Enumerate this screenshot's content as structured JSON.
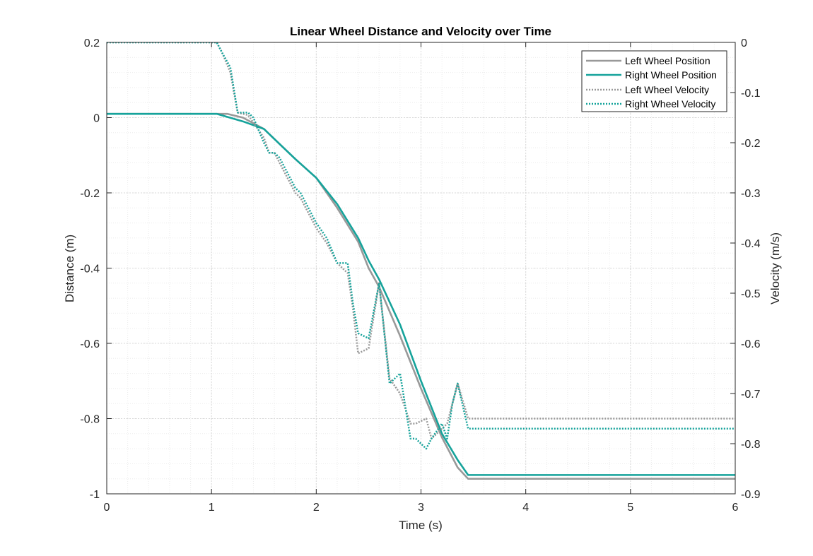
{
  "chart_data": {
    "type": "line",
    "title": "Linear Wheel Distance and Velocity over Time",
    "xlabel": "Time (s)",
    "ylabel_left": "Distance (m)",
    "ylabel_right": "Velocity (m/s)",
    "xlim": [
      0,
      6
    ],
    "ylim_left": [
      -1,
      0.2
    ],
    "ylim_right": [
      -0.9,
      0
    ],
    "x_ticks": [
      "0",
      "1",
      "2",
      "3",
      "4",
      "5",
      "6"
    ],
    "y_left_ticks": [
      "-1",
      "-0.8",
      "-0.6",
      "-0.4",
      "-0.2",
      "0",
      "0.2"
    ],
    "y_right_ticks": [
      "-0.9",
      "-0.8",
      "-0.7",
      "-0.6",
      "-0.5",
      "-0.4",
      "-0.3",
      "-0.2",
      "-0.1",
      "0"
    ],
    "grid": true,
    "minor_grid": true,
    "legend_position": "top-right",
    "series": [
      {
        "name": "Left Wheel Position",
        "axis": "left",
        "style": "solid",
        "color": "#999999",
        "x": [
          0,
          1.0,
          1.15,
          1.3,
          1.5,
          1.65,
          1.8,
          2.0,
          2.2,
          2.4,
          2.5,
          2.6,
          2.8,
          3.0,
          3.2,
          3.35,
          3.45,
          6.0
        ],
        "y": [
          0.01,
          0.01,
          0.01,
          0.0,
          -0.03,
          -0.07,
          -0.11,
          -0.16,
          -0.24,
          -0.33,
          -0.4,
          -0.45,
          -0.58,
          -0.72,
          -0.85,
          -0.93,
          -0.96,
          -0.96
        ]
      },
      {
        "name": "Right Wheel Position",
        "axis": "left",
        "style": "solid",
        "color": "#16A39B",
        "x": [
          0,
          1.0,
          1.05,
          1.3,
          1.5,
          1.65,
          1.8,
          2.0,
          2.2,
          2.4,
          2.5,
          2.6,
          2.8,
          3.0,
          3.2,
          3.35,
          3.45,
          6.0
        ],
        "y": [
          0.01,
          0.01,
          0.01,
          -0.01,
          -0.03,
          -0.07,
          -0.11,
          -0.16,
          -0.23,
          -0.32,
          -0.38,
          -0.43,
          -0.55,
          -0.7,
          -0.84,
          -0.91,
          -0.95,
          -0.95
        ]
      },
      {
        "name": "Left Wheel Velocity",
        "axis": "right",
        "style": "dotted",
        "color": "#999999",
        "x": [
          0,
          1.05,
          1.1,
          1.18,
          1.25,
          1.35,
          1.4,
          1.5,
          1.55,
          1.6,
          1.65,
          1.7,
          1.75,
          1.8,
          1.85,
          1.9,
          2.0,
          2.1,
          2.2,
          2.25,
          2.3,
          2.35,
          2.4,
          2.5,
          2.6,
          2.7,
          2.8,
          2.9,
          2.95,
          3.05,
          3.1,
          3.2,
          3.25,
          3.3,
          3.35,
          3.45,
          6.0
        ],
        "y": [
          0,
          0,
          -0.02,
          -0.06,
          -0.14,
          -0.145,
          -0.16,
          -0.19,
          -0.22,
          -0.22,
          -0.24,
          -0.26,
          -0.28,
          -0.3,
          -0.31,
          -0.33,
          -0.37,
          -0.4,
          -0.44,
          -0.45,
          -0.46,
          -0.53,
          -0.62,
          -0.61,
          -0.48,
          -0.67,
          -0.7,
          -0.76,
          -0.76,
          -0.75,
          -0.79,
          -0.77,
          -0.76,
          -0.72,
          -0.68,
          -0.75,
          -0.75
        ]
      },
      {
        "name": "Right Wheel Velocity",
        "axis": "right",
        "style": "dotted",
        "color": "#16A39B",
        "x": [
          0,
          1.05,
          1.1,
          1.18,
          1.25,
          1.35,
          1.4,
          1.5,
          1.55,
          1.6,
          1.65,
          1.7,
          1.75,
          1.8,
          1.85,
          1.9,
          2.0,
          2.1,
          2.2,
          2.25,
          2.3,
          2.35,
          2.4,
          2.5,
          2.6,
          2.7,
          2.8,
          2.9,
          2.95,
          3.05,
          3.1,
          3.2,
          3.25,
          3.3,
          3.35,
          3.45,
          6.0
        ],
        "y": [
          0,
          0,
          -0.02,
          -0.05,
          -0.14,
          -0.14,
          -0.15,
          -0.2,
          -0.22,
          -0.22,
          -0.23,
          -0.25,
          -0.27,
          -0.29,
          -0.3,
          -0.32,
          -0.36,
          -0.39,
          -0.44,
          -0.44,
          -0.44,
          -0.52,
          -0.58,
          -0.59,
          -0.48,
          -0.68,
          -0.66,
          -0.79,
          -0.79,
          -0.81,
          -0.79,
          -0.76,
          -0.79,
          -0.72,
          -0.68,
          -0.77,
          -0.77
        ]
      }
    ]
  }
}
